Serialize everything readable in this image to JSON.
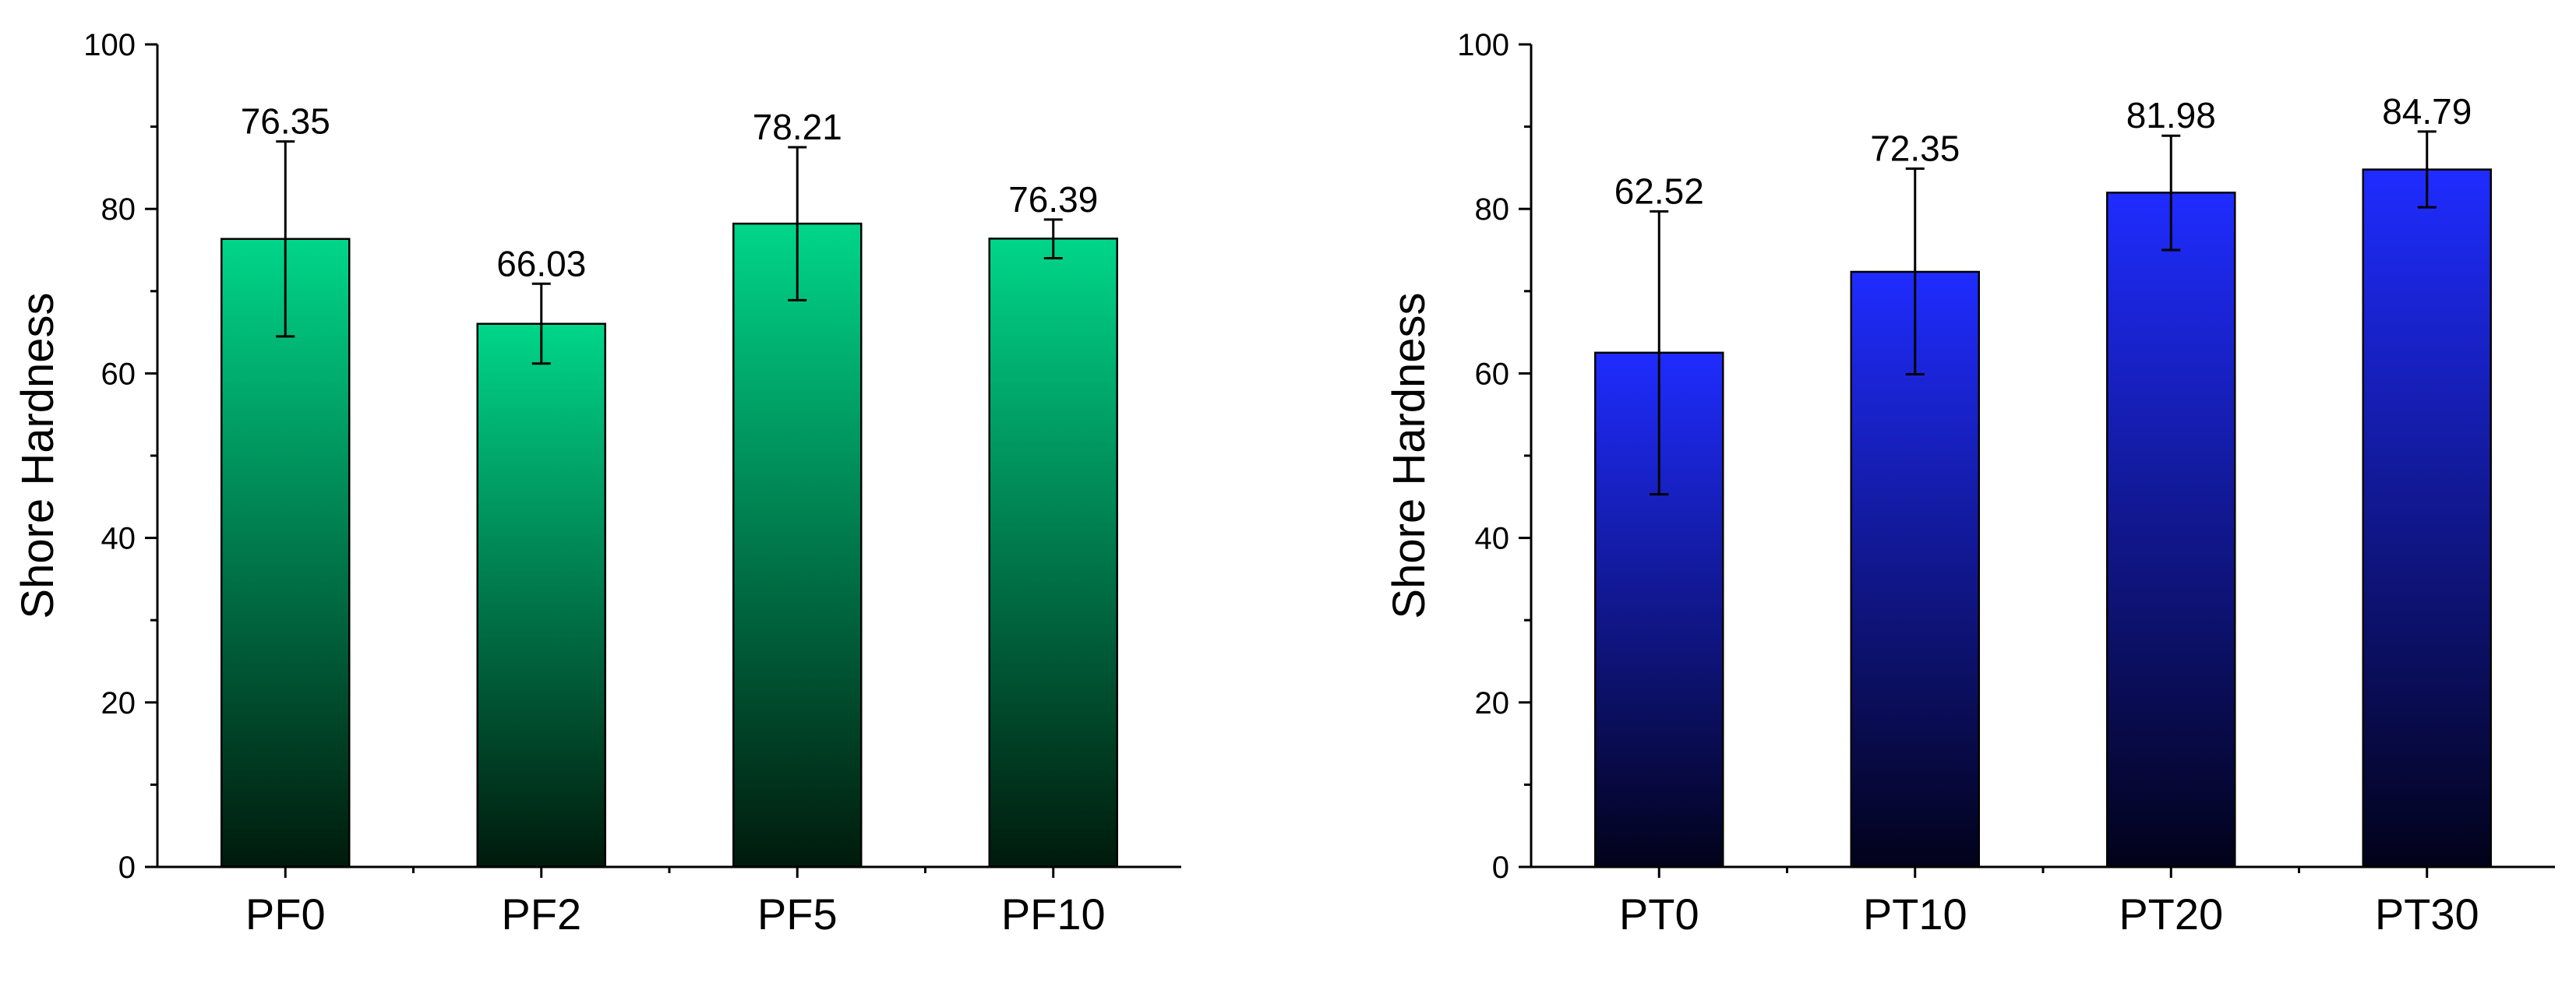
{
  "chart_data": [
    {
      "type": "bar",
      "title": "",
      "xlabel": "",
      "ylabel": "Shore Hardness",
      "ylim": [
        0,
        100
      ],
      "yticks": [
        0,
        20,
        40,
        60,
        80,
        100
      ],
      "categories": [
        "PF0",
        "PF2",
        "PF5",
        "PF10"
      ],
      "values": [
        76.35,
        66.03,
        78.21,
        76.39
      ],
      "value_labels": [
        "76.35",
        "66.03",
        "78.21",
        "76.39"
      ],
      "error_low": [
        64.5,
        61.2,
        68.9,
        74.0
      ],
      "error_high": [
        88.2,
        70.9,
        87.5,
        78.7
      ],
      "color_top": "#00d68a",
      "color_bottom": "#001a0c"
    },
    {
      "type": "bar",
      "title": "",
      "xlabel": "",
      "ylabel": "Shore Hardness",
      "ylim": [
        0,
        100
      ],
      "yticks": [
        0,
        20,
        40,
        60,
        80,
        100
      ],
      "categories": [
        "PT0",
        "PT10",
        "PT20",
        "PT30"
      ],
      "values": [
        62.52,
        72.35,
        81.98,
        84.79
      ],
      "value_labels": [
        "62.52",
        "72.35",
        "81.98",
        "84.79"
      ],
      "error_low": [
        45.3,
        59.9,
        75.0,
        80.2
      ],
      "error_high": [
        79.7,
        84.9,
        88.9,
        89.4
      ],
      "color_top": "#1f2cff",
      "color_bottom": "#02021a"
    }
  ]
}
